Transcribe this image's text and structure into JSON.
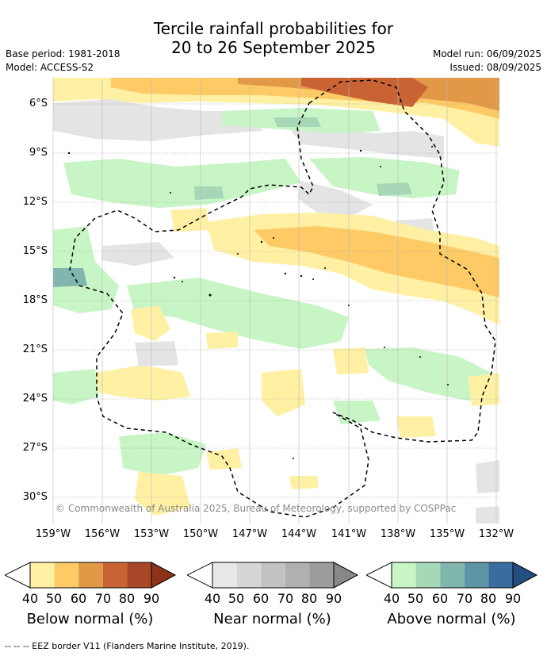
{
  "title_line1": "Tercile rainfall probabilities for",
  "title_line2": "20 to 26 September 2025",
  "base_period": "Base period: 1981-2018",
  "model": "Model: ACCESS-S2",
  "model_run": "Model run: 06/09/2025",
  "issued": "Issued: 08/09/2025",
  "lat_labels": [
    "6°S",
    "9°S",
    "12°S",
    "15°S",
    "18°S",
    "21°S",
    "24°S",
    "27°S",
    "30°S"
  ],
  "lon_labels": [
    "159°W",
    "156°W",
    "153°W",
    "150°W",
    "147°W",
    "144°W",
    "141°W",
    "138°W",
    "135°W",
    "132°W"
  ],
  "credit": "© Commonwealth of Australia 2025, Bureau of Meteorology, supported by COSPPac",
  "colorbars": [
    {
      "title": "Below normal (%)",
      "ticks": [
        "40",
        "50",
        "60",
        "70",
        "80",
        "90"
      ],
      "colors": [
        "#fff0a4",
        "#fdca66",
        "#e19847",
        "#c96333",
        "#a84728",
        "#8e3218"
      ]
    },
    {
      "title": "Near normal (%)",
      "ticks": [
        "40",
        "50",
        "60",
        "70",
        "80",
        "90"
      ],
      "colors": [
        "#e8e8e8",
        "#d6d6d6",
        "#c2c2c2",
        "#b0b0b0",
        "#9c9c9c",
        "#888888"
      ]
    },
    {
      "title": "Above normal (%)",
      "ticks": [
        "40",
        "50",
        "60",
        "70",
        "80",
        "90"
      ],
      "colors": [
        "#c8f5c6",
        "#a6d8b8",
        "#80b6ae",
        "#5d94a6",
        "#3a6d9e",
        "#234f80"
      ]
    }
  ],
  "footnote": "--  --  -- EEZ border V11 (Flanders Marine Institute, 2019)."
}
